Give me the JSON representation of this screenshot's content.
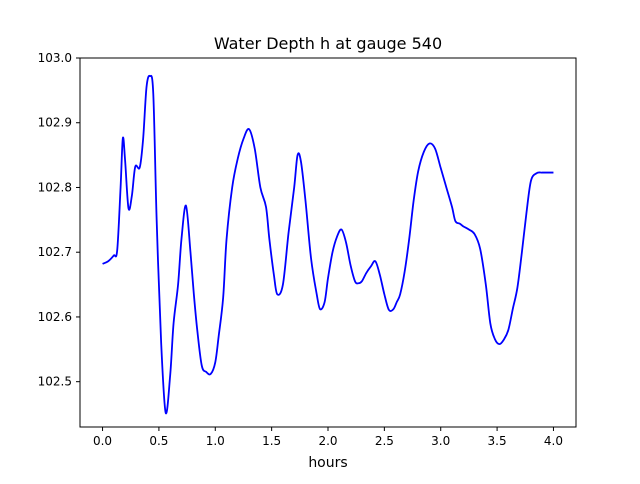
{
  "chart_data": {
    "type": "line",
    "title": "Water Depth h at gauge 540",
    "xlabel": "hours",
    "ylabel": "",
    "xlim": [
      -0.2,
      4.2
    ],
    "ylim": [
      102.43,
      103.0
    ],
    "xticks": [
      0.0,
      0.5,
      1.0,
      1.5,
      2.0,
      2.5,
      3.0,
      3.5,
      4.0
    ],
    "xtick_labels": [
      "0.0",
      "0.5",
      "1.0",
      "1.5",
      "2.0",
      "2.5",
      "3.0",
      "3.5",
      "4.0"
    ],
    "yticks": [
      102.5,
      102.6,
      102.7,
      102.8,
      102.9,
      103.0
    ],
    "ytick_labels": [
      "102.5",
      "102.6",
      "102.7",
      "102.8",
      "102.9",
      "103.0"
    ],
    "grid": false,
    "line_color": "#0000ff",
    "series": [
      {
        "x": [
          0.0,
          0.05,
          0.1,
          0.13,
          0.16,
          0.18,
          0.2,
          0.23,
          0.26,
          0.29,
          0.33,
          0.36,
          0.39,
          0.42,
          0.45,
          0.48,
          0.52,
          0.56,
          0.6,
          0.63,
          0.67,
          0.7,
          0.74,
          0.78,
          0.81,
          0.84,
          0.88,
          0.92,
          0.96,
          1.0,
          1.03,
          1.07,
          1.1,
          1.15,
          1.2,
          1.25,
          1.3,
          1.35,
          1.4,
          1.45,
          1.48,
          1.52,
          1.55,
          1.6,
          1.65,
          1.7,
          1.73,
          1.76,
          1.8,
          1.85,
          1.9,
          1.93,
          1.97,
          2.0,
          2.04,
          2.08,
          2.12,
          2.16,
          2.2,
          2.24,
          2.27,
          2.3,
          2.34,
          2.38,
          2.42,
          2.46,
          2.5,
          2.54,
          2.58,
          2.61,
          2.64,
          2.68,
          2.72,
          2.76,
          2.8,
          2.85,
          2.9,
          2.95,
          3.0,
          3.05,
          3.1,
          3.13,
          3.17,
          3.2,
          3.25,
          3.3,
          3.35,
          3.4,
          3.44,
          3.48,
          3.52,
          3.56,
          3.6,
          3.64,
          3.68,
          3.72,
          3.76,
          3.8,
          3.85,
          3.9,
          3.94,
          3.97,
          4.0
        ],
        "y": [
          102.682,
          102.686,
          102.695,
          102.703,
          102.8,
          102.876,
          102.842,
          102.768,
          102.787,
          102.832,
          102.831,
          102.875,
          102.955,
          102.972,
          102.945,
          102.75,
          102.56,
          102.452,
          102.51,
          102.59,
          102.65,
          102.72,
          102.772,
          102.7,
          102.635,
          102.58,
          102.525,
          102.515,
          102.512,
          102.53,
          102.57,
          102.63,
          102.72,
          102.8,
          102.845,
          102.875,
          102.89,
          102.86,
          102.8,
          102.77,
          102.72,
          102.665,
          102.635,
          102.65,
          102.73,
          102.8,
          102.85,
          102.84,
          102.78,
          102.69,
          102.635,
          102.612,
          102.623,
          102.66,
          102.7,
          102.724,
          102.735,
          102.715,
          102.68,
          102.655,
          102.652,
          102.655,
          102.668,
          102.678,
          102.686,
          102.665,
          102.635,
          102.611,
          102.612,
          102.623,
          102.635,
          102.67,
          102.72,
          102.78,
          102.825,
          102.855,
          102.868,
          102.86,
          102.83,
          102.8,
          102.77,
          102.748,
          102.744,
          102.74,
          102.735,
          102.728,
          102.705,
          102.65,
          102.59,
          102.566,
          102.558,
          102.565,
          102.58,
          102.613,
          102.645,
          102.7,
          102.76,
          102.81,
          102.822,
          102.823,
          102.823,
          102.823,
          102.823
        ]
      }
    ]
  }
}
